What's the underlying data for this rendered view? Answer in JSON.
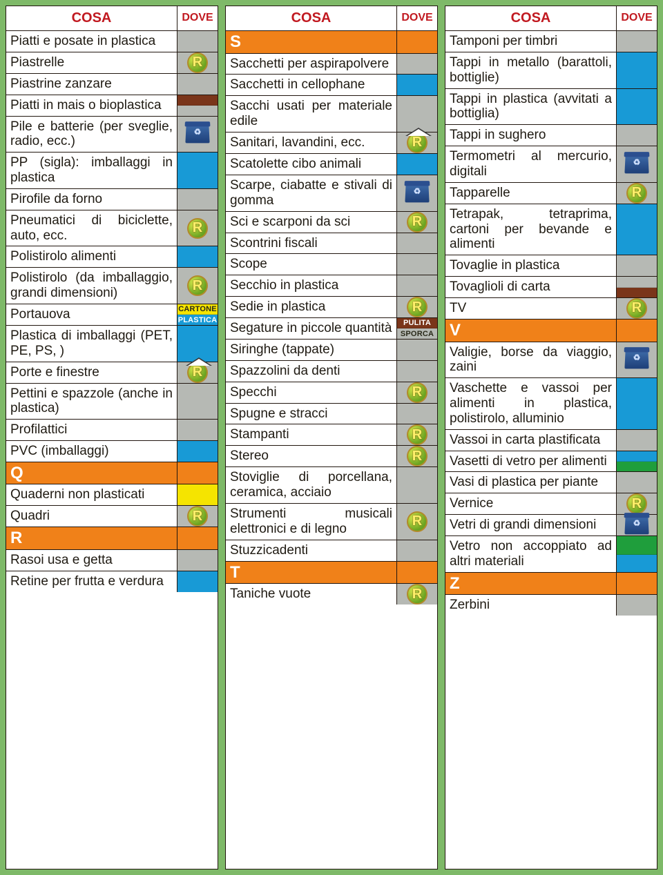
{
  "colors": {
    "page_bg": "#7eb968",
    "border": "#20150e",
    "header_text": "#c11920",
    "letter_bg": "#f08119",
    "gray": "#b6b9b4",
    "blue": "#189ad6",
    "brown": "#7a351a",
    "yellow": "#f5e400",
    "green": "#1f9e3c",
    "white": "#ffffff",
    "pulita_bg": "#7a351a",
    "sporca_bg": "#b6b9b4"
  },
  "headers": {
    "cosa": "COSA",
    "dove": "DOVE"
  },
  "labels": {
    "cartone": "CARTONE",
    "plastica": "PLASTICA",
    "pulita": "PULITA",
    "sporca": "SPORCA"
  },
  "columns": [
    {
      "rows": [
        {
          "type": "item",
          "text": "Piatti e posate in plastica",
          "dove": [
            {
              "kind": "color",
              "value": "#b6b9b4"
            }
          ]
        },
        {
          "type": "item",
          "text": "Piastrelle",
          "dove": [
            {
              "kind": "icon",
              "value": "r"
            }
          ]
        },
        {
          "type": "item",
          "text": "Piastrine zanzare",
          "dove": [
            {
              "kind": "color",
              "value": "#b6b9b4"
            }
          ]
        },
        {
          "type": "item",
          "text": "Piatti in mais\no bioplastica",
          "dove": [
            {
              "kind": "color",
              "value": "#7a351a"
            },
            {
              "kind": "color",
              "value": "#b6b9b4"
            }
          ]
        },
        {
          "type": "item",
          "text": "Pile e batterie (per sveglie, radio, ecc.)",
          "dove": [
            {
              "kind": "icon",
              "value": "bin"
            }
          ]
        },
        {
          "type": "item",
          "text": "PP (sigla): imballaggi in plastica",
          "dove": [
            {
              "kind": "color",
              "value": "#189ad6"
            }
          ]
        },
        {
          "type": "item",
          "text": "Pirofile da forno",
          "dove": [
            {
              "kind": "color",
              "value": "#b6b9b4"
            }
          ]
        },
        {
          "type": "item",
          "text": "Pneumatici di biciclette, auto, ecc.",
          "dove": [
            {
              "kind": "icon",
              "value": "r"
            }
          ]
        },
        {
          "type": "item",
          "text": "Polistirolo alimenti",
          "dove": [
            {
              "kind": "color",
              "value": "#189ad6"
            }
          ]
        },
        {
          "type": "item",
          "text": "Polistirolo (da imballaggio, grandi dimensioni)",
          "dove": [
            {
              "kind": "icon",
              "value": "r"
            }
          ]
        },
        {
          "type": "item",
          "text": "Portauova",
          "dove": [
            {
              "kind": "label",
              "bg": "#f5e400",
              "label": "CARTONE",
              "dark": true
            },
            {
              "kind": "label",
              "bg": "#189ad6",
              "label": "PLASTICA"
            }
          ]
        },
        {
          "type": "item",
          "text": "Plastica di imballaggi (PET, PE, PS, )",
          "dove": [
            {
              "kind": "color",
              "value": "#189ad6"
            }
          ]
        },
        {
          "type": "item",
          "text": "Porte e finestre",
          "dove": [
            {
              "kind": "icon",
              "value": "r-house"
            }
          ]
        },
        {
          "type": "item",
          "text": "Pettini e spazzole (anche in plastica)",
          "dove": [
            {
              "kind": "color",
              "value": "#b6b9b4"
            }
          ]
        },
        {
          "type": "item",
          "text": "Profilattici",
          "dove": [
            {
              "kind": "color",
              "value": "#b6b9b4"
            }
          ]
        },
        {
          "type": "item",
          "text": "PVC (imballaggi)",
          "dove": [
            {
              "kind": "color",
              "value": "#189ad6"
            }
          ]
        },
        {
          "type": "letter",
          "text": "Q",
          "dove": [
            {
              "kind": "color",
              "value": "#f08119"
            }
          ]
        },
        {
          "type": "item",
          "text": "Quaderni non plasticati",
          "dove": [
            {
              "kind": "color",
              "value": "#f5e400"
            }
          ]
        },
        {
          "type": "item",
          "text": "Quadri",
          "dove": [
            {
              "kind": "icon",
              "value": "r"
            }
          ]
        },
        {
          "type": "letter",
          "text": "R",
          "dove": [
            {
              "kind": "color",
              "value": "#f08119"
            }
          ]
        },
        {
          "type": "item",
          "text": "Rasoi usa e getta",
          "dove": [
            {
              "kind": "color",
              "value": "#b6b9b4"
            }
          ]
        },
        {
          "type": "item",
          "text": "Retine per frutta e verdura",
          "dove": [
            {
              "kind": "color",
              "value": "#189ad6"
            }
          ]
        }
      ]
    },
    {
      "rows": [
        {
          "type": "letter",
          "text": "S",
          "dove": [
            {
              "kind": "color",
              "value": "#f08119"
            }
          ]
        },
        {
          "type": "item",
          "text": "Sacchetti per aspirapolvere",
          "dove": [
            {
              "kind": "color",
              "value": "#b6b9b4"
            }
          ]
        },
        {
          "type": "item",
          "text": "Sacchetti in cellophane",
          "dove": [
            {
              "kind": "color",
              "value": "#189ad6"
            }
          ]
        },
        {
          "type": "item",
          "text": "Sacchi usati per materiale edile",
          "dove": [
            {
              "kind": "color",
              "value": "#b6b9b4"
            }
          ]
        },
        {
          "type": "item",
          "text": "Sanitari, lavandini, ecc.",
          "dove": [
            {
              "kind": "icon",
              "value": "r-house"
            }
          ]
        },
        {
          "type": "item",
          "text": "Scatolette cibo animali",
          "dove": [
            {
              "kind": "color",
              "value": "#189ad6"
            }
          ]
        },
        {
          "type": "item",
          "text": "Scarpe, ciabatte e stivali di gomma",
          "dove": [
            {
              "kind": "icon",
              "value": "bin"
            }
          ]
        },
        {
          "type": "item",
          "text": "Sci e scarponi da sci",
          "dove": [
            {
              "kind": "icon",
              "value": "r"
            }
          ]
        },
        {
          "type": "item",
          "text": "Scontrini fiscali",
          "dove": [
            {
              "kind": "color",
              "value": "#b6b9b4"
            }
          ]
        },
        {
          "type": "item",
          "text": "Scope",
          "dove": [
            {
              "kind": "color",
              "value": "#b6b9b4"
            }
          ]
        },
        {
          "type": "item",
          "text": "Secchio in plastica",
          "dove": [
            {
              "kind": "color",
              "value": "#b6b9b4"
            }
          ]
        },
        {
          "type": "item",
          "text": "Sedie in plastica",
          "dove": [
            {
              "kind": "icon",
              "value": "r"
            }
          ]
        },
        {
          "type": "item",
          "text": "Segature in piccole quantità",
          "dove": [
            {
              "kind": "label",
              "bg": "#7a351a",
              "label": "PULITA"
            },
            {
              "kind": "label",
              "bg": "#b6b9b4",
              "label": "SPORCA",
              "dark": true
            }
          ]
        },
        {
          "type": "item",
          "text": "Siringhe (tappate)",
          "dove": [
            {
              "kind": "color",
              "value": "#b6b9b4"
            }
          ]
        },
        {
          "type": "item",
          "text": "Spazzolini da denti",
          "dove": [
            {
              "kind": "color",
              "value": "#b6b9b4"
            }
          ]
        },
        {
          "type": "item",
          "text": "Specchi",
          "dove": [
            {
              "kind": "icon",
              "value": "r"
            }
          ]
        },
        {
          "type": "item",
          "text": "Spugne e stracci",
          "dove": [
            {
              "kind": "color",
              "value": "#b6b9b4"
            }
          ]
        },
        {
          "type": "item",
          "text": "Stampanti",
          "dove": [
            {
              "kind": "icon",
              "value": "r"
            }
          ]
        },
        {
          "type": "item",
          "text": "Stereo",
          "dove": [
            {
              "kind": "icon",
              "value": "r"
            }
          ]
        },
        {
          "type": "item",
          "text": "Stoviglie di porcellana, ceramica, acciaio",
          "dove": [
            {
              "kind": "color",
              "value": "#b6b9b4"
            }
          ]
        },
        {
          "type": "item",
          "text": "Strumenti musicali elettronici e di legno",
          "dove": [
            {
              "kind": "icon",
              "value": "r"
            }
          ]
        },
        {
          "type": "item",
          "text": "Stuzzicadenti",
          "dove": [
            {
              "kind": "color",
              "value": "#b6b9b4"
            }
          ]
        },
        {
          "type": "letter",
          "text": "T",
          "dove": [
            {
              "kind": "color",
              "value": "#f08119"
            }
          ]
        },
        {
          "type": "item",
          "text": "Taniche vuote",
          "dove": [
            {
              "kind": "icon",
              "value": "r"
            }
          ]
        }
      ]
    },
    {
      "rows": [
        {
          "type": "item",
          "text": "Tamponi per timbri",
          "dove": [
            {
              "kind": "color",
              "value": "#b6b9b4"
            }
          ]
        },
        {
          "type": "item",
          "text": "Tappi in metallo (barattoli, bottiglie)",
          "dove": [
            {
              "kind": "color",
              "value": "#189ad6"
            }
          ]
        },
        {
          "type": "item",
          "text": "Tappi in plastica (avvitati a bottiglia)",
          "dove": [
            {
              "kind": "color",
              "value": "#189ad6"
            }
          ]
        },
        {
          "type": "item",
          "text": "Tappi in sughero",
          "dove": [
            {
              "kind": "color",
              "value": "#b6b9b4"
            }
          ]
        },
        {
          "type": "item",
          "text": "Termometri al mercurio, digitali",
          "dove": [
            {
              "kind": "icon",
              "value": "bin"
            }
          ]
        },
        {
          "type": "item",
          "text": "Tapparelle",
          "dove": [
            {
              "kind": "icon",
              "value": "r"
            }
          ]
        },
        {
          "type": "item",
          "text": "Tetrapak, tetraprima, cartoni per bevande e alimenti",
          "dove": [
            {
              "kind": "color",
              "value": "#189ad6"
            }
          ]
        },
        {
          "type": "item",
          "text": "Tovaglie in plastica",
          "dove": [
            {
              "kind": "color",
              "value": "#b6b9b4"
            }
          ]
        },
        {
          "type": "item",
          "text": "Tovaglioli di carta",
          "dove": [
            {
              "kind": "color",
              "value": "#b6b9b4"
            },
            {
              "kind": "color",
              "value": "#7a351a"
            }
          ]
        },
        {
          "type": "item",
          "text": "TV",
          "dove": [
            {
              "kind": "icon",
              "value": "r"
            }
          ]
        },
        {
          "type": "letter",
          "text": "V",
          "dove": [
            {
              "kind": "color",
              "value": "#f08119"
            }
          ]
        },
        {
          "type": "item",
          "text": "Valigie, borse da viaggio, zaini",
          "dove": [
            {
              "kind": "icon",
              "value": "bin"
            }
          ]
        },
        {
          "type": "item",
          "text": "Vaschette e vassoi per alimenti in plastica, polistirolo, alluminio",
          "dove": [
            {
              "kind": "color",
              "value": "#189ad6"
            }
          ]
        },
        {
          "type": "item",
          "text": "Vassoi in carta plastificata",
          "dove": [
            {
              "kind": "color",
              "value": "#b6b9b4"
            }
          ]
        },
        {
          "type": "item",
          "text": "Vasetti di vetro per alimenti",
          "dove": [
            {
              "kind": "color",
              "value": "#189ad6"
            },
            {
              "kind": "color",
              "value": "#1f9e3c"
            }
          ]
        },
        {
          "type": "item",
          "text": "Vasi di plastica per piante",
          "dove": [
            {
              "kind": "color",
              "value": "#b6b9b4"
            }
          ]
        },
        {
          "type": "item",
          "text": "Vernice",
          "dove": [
            {
              "kind": "icon",
              "value": "r"
            }
          ]
        },
        {
          "type": "item",
          "text": "Vetri di grandi dimensioni",
          "dove": [
            {
              "kind": "icon",
              "value": "bin"
            }
          ]
        },
        {
          "type": "item",
          "text": "Vetro non accoppiato ad altri materiali",
          "dove": [
            {
              "kind": "color",
              "value": "#1f9e3c"
            },
            {
              "kind": "color",
              "value": "#189ad6"
            }
          ]
        },
        {
          "type": "letter",
          "text": "Z",
          "dove": [
            {
              "kind": "color",
              "value": "#f08119"
            }
          ]
        },
        {
          "type": "item",
          "text": "Zerbini",
          "dove": [
            {
              "kind": "color",
              "value": "#b6b9b4"
            }
          ]
        }
      ]
    }
  ]
}
